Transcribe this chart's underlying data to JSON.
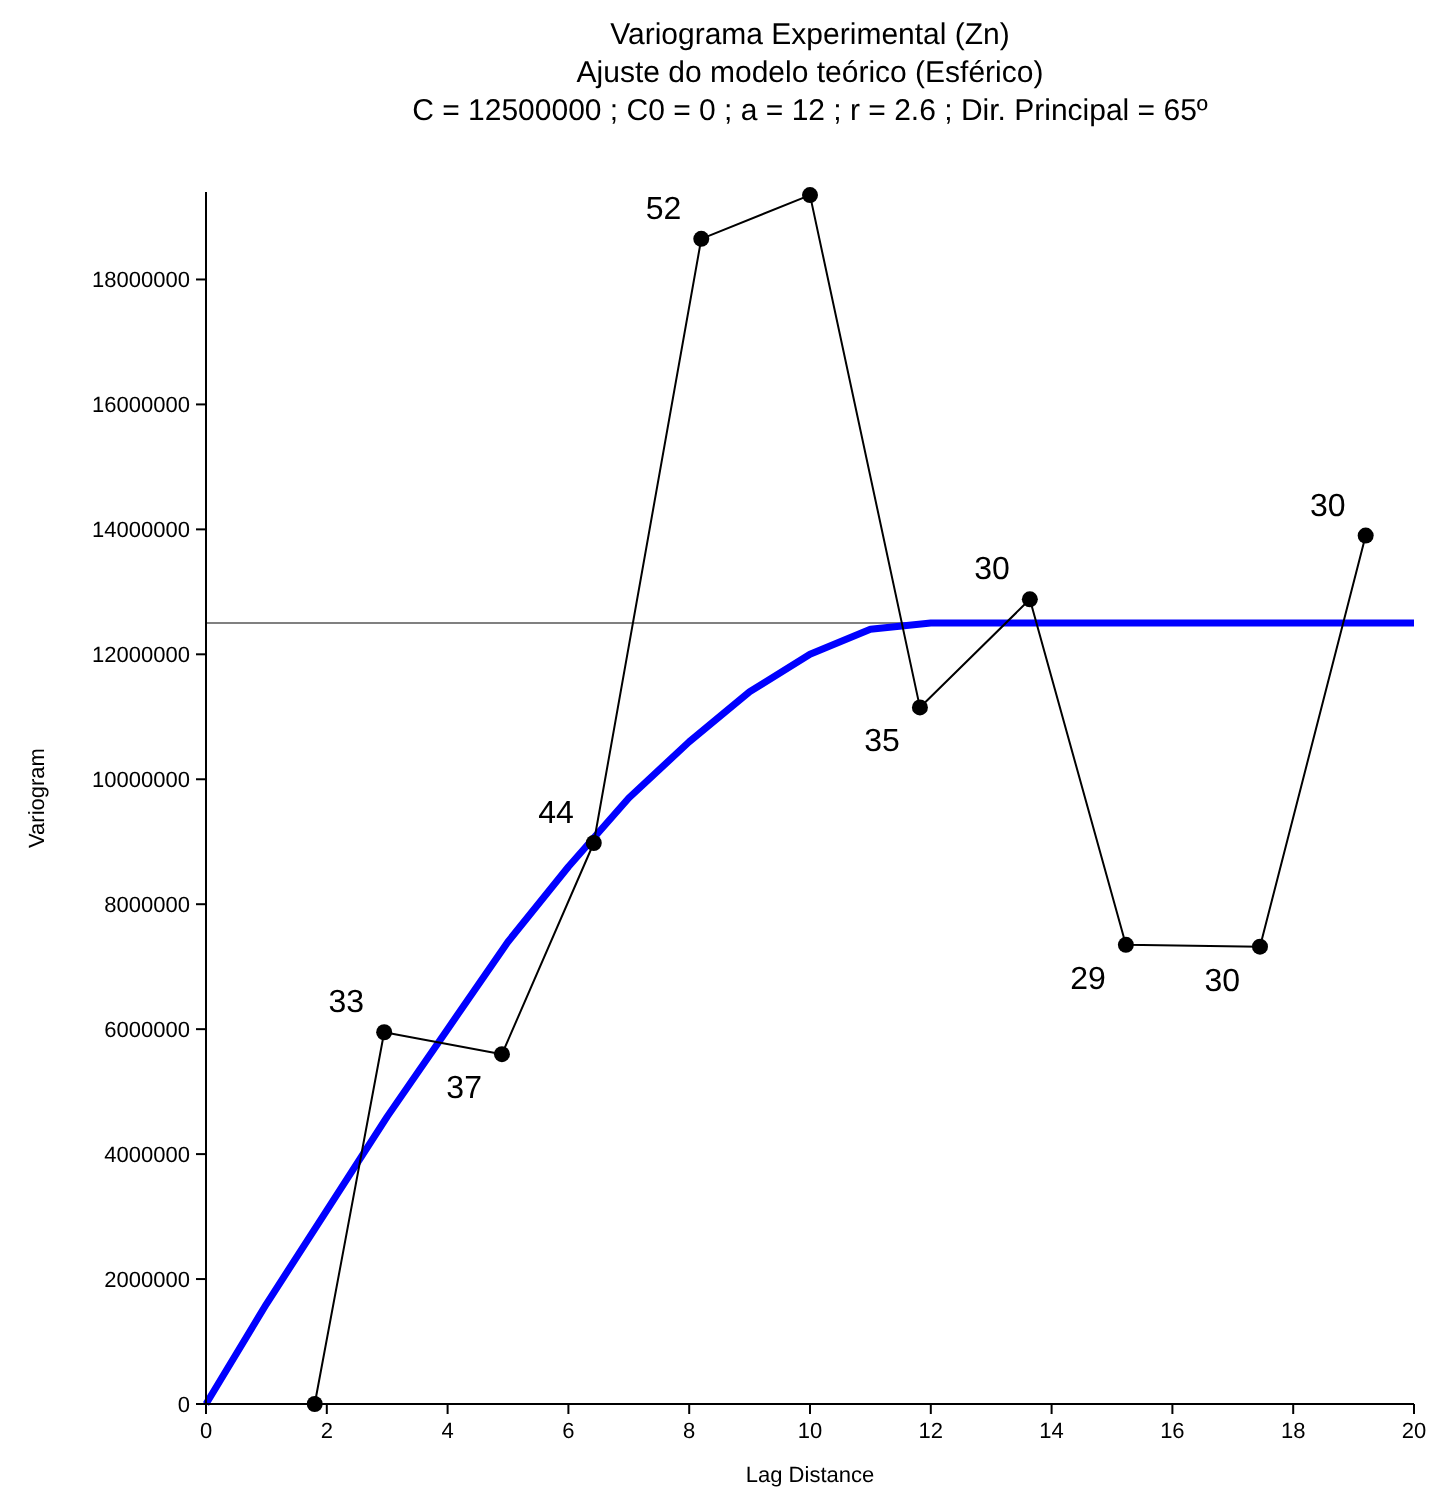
{
  "chart_data": {
    "type": "line",
    "title": "Variograma Experimental (Zn)",
    "subtitle": "Ajuste do modelo teórico (Esférico)\nC = 12500000 ; C0 = 0 ; a = 12 ; r = 2.6 ; Dir. Principal = 65º",
    "xlabel": "Lag Distance",
    "ylabel": "Variogram",
    "xlim": [
      0,
      20
    ],
    "xticks": [
      0,
      2,
      4,
      6,
      8,
      10,
      12,
      14,
      16,
      18,
      20
    ],
    "ylim": [
      0,
      19400000
    ],
    "yticks": [
      0,
      2000000,
      4000000,
      6000000,
      8000000,
      10000000,
      12000000,
      14000000,
      16000000,
      18000000
    ],
    "ref_lines": [
      {
        "axis": "y",
        "value": 12500000,
        "color": "#808080"
      }
    ],
    "annotations": [
      {
        "text": "33",
        "x": 2.95,
        "y": 5950000
      },
      {
        "text": "37",
        "x": 4.9,
        "y": 5600000
      },
      {
        "text": "44",
        "x": 6.42,
        "y": 8980000
      },
      {
        "text": "52",
        "x": 8.2,
        "y": 18650000
      },
      {
        "text": "35",
        "x": 11.82,
        "y": 11150000
      },
      {
        "text": "30",
        "x": 13.64,
        "y": 12880000
      },
      {
        "text": "29",
        "x": 15.23,
        "y": 7350000
      },
      {
        "text": "30",
        "x": 17.45,
        "y": 7320000
      },
      {
        "text": "30",
        "x": 19.2,
        "y": 13900000
      }
    ],
    "series": [
      {
        "color": "#0000ff",
        "marker": "none",
        "x": [
          0,
          1,
          2,
          3,
          4,
          5,
          6,
          7,
          8,
          9,
          10,
          11,
          12,
          20
        ],
        "values": [
          0,
          1600000,
          3100000,
          4600000,
          6000000,
          7400000,
          8600000,
          9700000,
          10600000,
          11400000,
          12000000,
          12400000,
          12500000,
          12500000
        ]
      },
      {
        "color": "#000000",
        "marker": "circle",
        "x": [
          1.8,
          2.95,
          4.9,
          6.42,
          8.2,
          10.0,
          11.82,
          13.64,
          15.23,
          17.45,
          19.2
        ],
        "values": [
          0,
          5950000,
          5600000,
          8980000,
          18650000,
          19350000,
          11150000,
          12880000,
          7350000,
          7320000,
          13900000
        ]
      }
    ]
  }
}
